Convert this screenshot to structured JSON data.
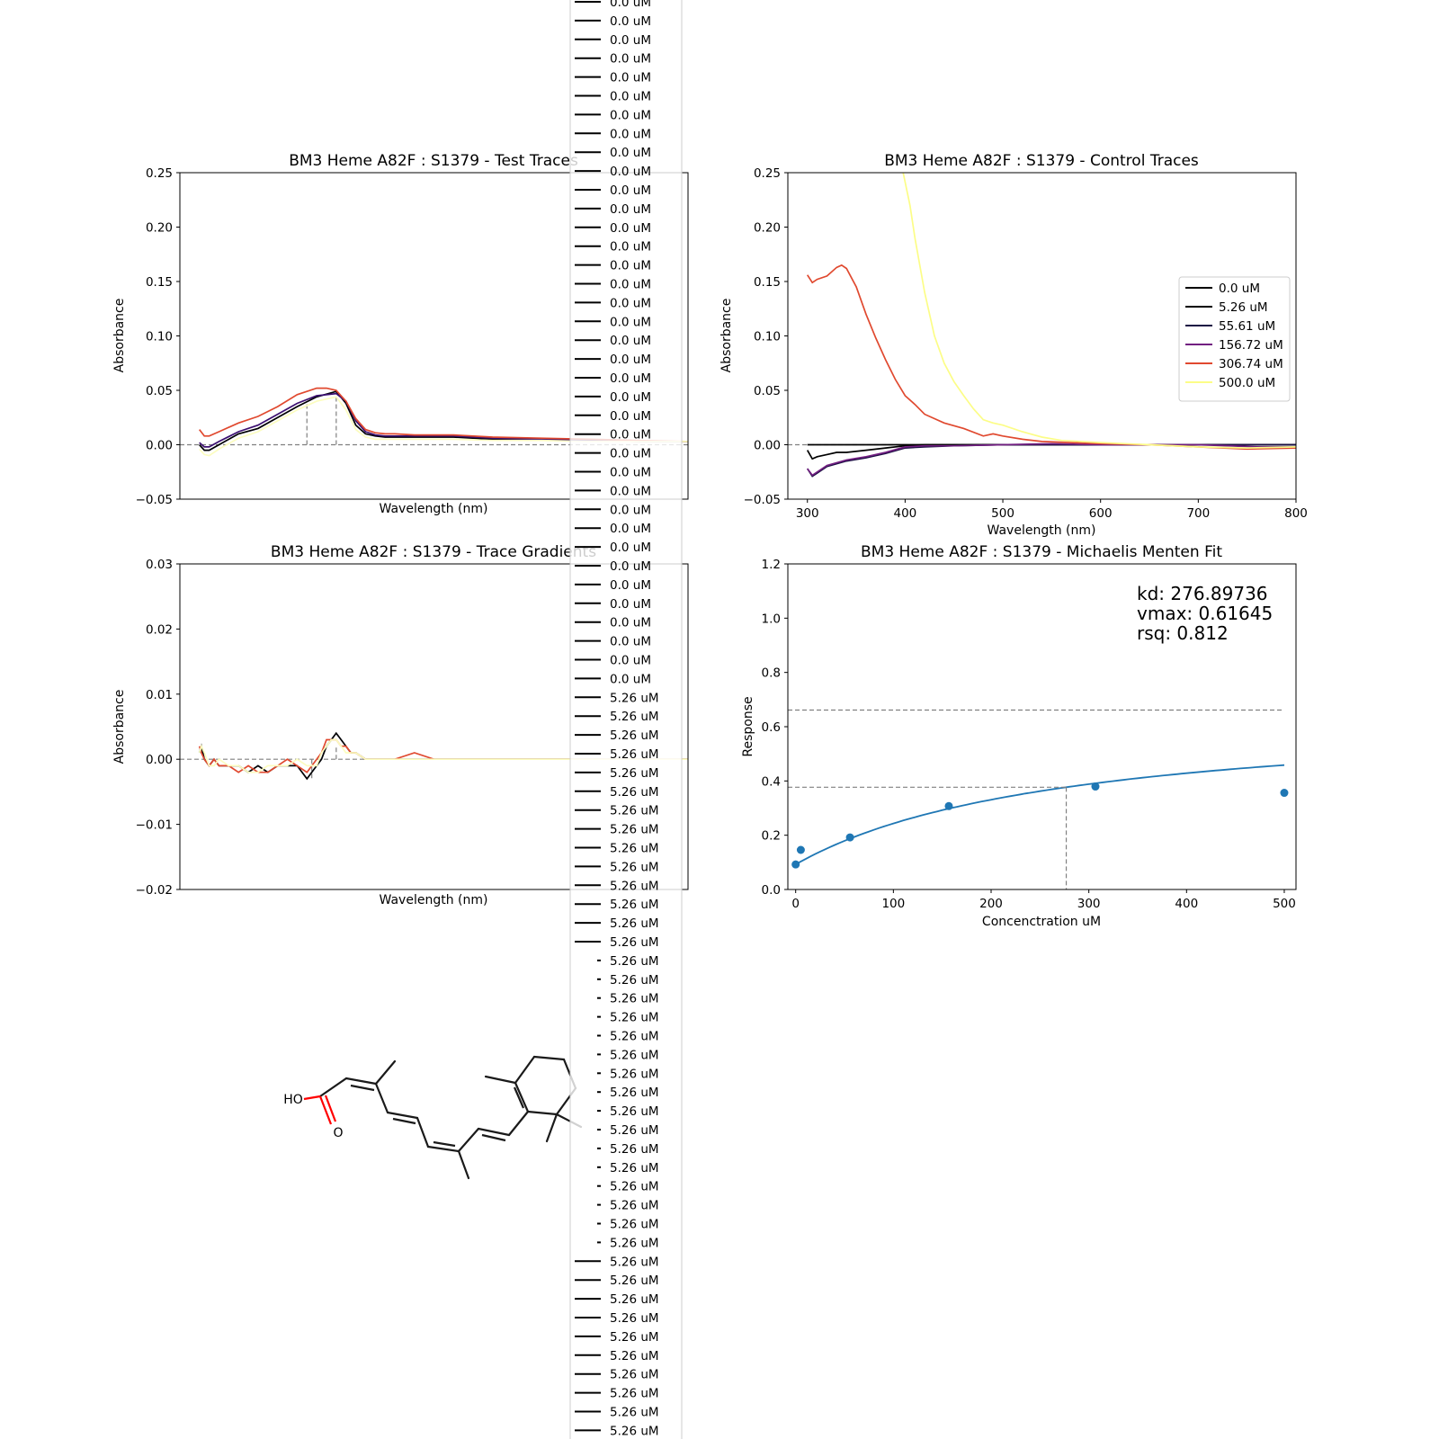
{
  "chart_data": [
    {
      "id": "test",
      "type": "line",
      "title": "BM3 Heme A82F : S1379 - Test Traces",
      "xlabel": "Wavelength (nm)",
      "ylabel": "Absorbance",
      "xlim": [
        280,
        800
      ],
      "ylim": [
        -0.05,
        0.25
      ],
      "yticks": [
        "0.25",
        "0.20",
        "0.15",
        "0.10",
        "0.05",
        "0.00",
        "−0.05"
      ],
      "series": [
        {
          "color": "#000004",
          "x": [
            300,
            305,
            310,
            320,
            340,
            360,
            380,
            400,
            420,
            440,
            450,
            460,
            470,
            480,
            490,
            500,
            520,
            540,
            560,
            600,
            650,
            700,
            750,
            800
          ],
          "y": [
            0.0,
            -0.005,
            -0.005,
            0.0,
            0.01,
            0.015,
            0.025,
            0.035,
            0.044,
            0.049,
            0.038,
            0.018,
            0.01,
            0.008,
            0.007,
            0.007,
            0.007,
            0.007,
            0.007,
            0.005,
            0.005,
            0.004,
            0.003,
            0.003
          ]
        },
        {
          "color": "#3b0f70",
          "x": [
            300,
            305,
            310,
            320,
            340,
            360,
            380,
            400,
            420,
            440,
            450,
            460,
            470,
            480,
            490,
            500,
            520,
            540,
            560,
            600,
            650,
            700,
            750,
            800
          ],
          "y": [
            0.002,
            -0.002,
            -0.002,
            0.003,
            0.012,
            0.018,
            0.028,
            0.038,
            0.045,
            0.047,
            0.04,
            0.022,
            0.012,
            0.009,
            0.008,
            0.008,
            0.008,
            0.008,
            0.008,
            0.006,
            0.005,
            0.004,
            0.003,
            0.003
          ]
        },
        {
          "color": "#e0492f",
          "x": [
            300,
            305,
            310,
            320,
            340,
            360,
            380,
            400,
            420,
            430,
            440,
            450,
            460,
            470,
            480,
            490,
            500,
            520,
            540,
            560,
            600,
            650,
            700,
            750,
            800
          ],
          "y": [
            0.014,
            0.008,
            0.008,
            0.012,
            0.02,
            0.026,
            0.035,
            0.046,
            0.052,
            0.052,
            0.05,
            0.04,
            0.024,
            0.014,
            0.011,
            0.01,
            0.01,
            0.009,
            0.009,
            0.009,
            0.007,
            0.006,
            0.005,
            0.004,
            0.003
          ]
        },
        {
          "color": "#fcfdbf",
          "x": [
            300,
            305,
            310,
            320,
            340,
            360,
            380,
            400,
            420,
            440,
            450,
            460,
            470,
            480,
            490,
            500,
            520,
            540,
            560,
            600,
            650,
            700,
            750,
            800
          ],
          "y": [
            -0.004,
            -0.009,
            -0.01,
            -0.004,
            0.006,
            0.012,
            0.022,
            0.032,
            0.04,
            0.044,
            0.032,
            0.014,
            0.007,
            0.005,
            0.005,
            0.005,
            0.005,
            0.005,
            0.005,
            0.004,
            0.004,
            0.003,
            0.003,
            0.003
          ]
        }
      ],
      "hlines": [
        0.0
      ],
      "vlines": [
        {
          "x": 410,
          "top": 0.04
        },
        {
          "x": 440,
          "top": 0.05
        }
      ]
    },
    {
      "id": "control",
      "type": "line",
      "title": "BM3 Heme A82F : S1379 - Control Traces",
      "xlabel": "Wavelength (nm)",
      "ylabel": "Absorbance",
      "xlim": [
        280,
        800
      ],
      "ylim": [
        -0.05,
        0.25
      ],
      "xticks": [
        "300",
        "400",
        "500",
        "600",
        "700",
        "800"
      ],
      "yticks": [
        "0.25",
        "0.20",
        "0.15",
        "0.10",
        "0.05",
        "0.00",
        "−0.05"
      ],
      "legend": "right",
      "series": [
        {
          "name": "0.0 uM",
          "color": "#000000",
          "x": [
            300,
            800
          ],
          "y": [
            0.0,
            0.0
          ]
        },
        {
          "name": "5.26 uM",
          "color": "#000000",
          "x": [
            300,
            305,
            310,
            320,
            330,
            340,
            360,
            380,
            400,
            420,
            450,
            500,
            600,
            700,
            800
          ],
          "y": [
            -0.005,
            -0.013,
            -0.011,
            -0.009,
            -0.007,
            -0.007,
            -0.005,
            -0.003,
            -0.001,
            0.0,
            0.0,
            0.0,
            0.0,
            0.0,
            0.0
          ]
        },
        {
          "name": "55.61 uM",
          "color": "#1c1044",
          "x": [
            300,
            305,
            310,
            320,
            340,
            360,
            380,
            400,
            420,
            450,
            500,
            550,
            600,
            700,
            800
          ],
          "y": [
            -0.022,
            -0.029,
            -0.026,
            -0.02,
            -0.015,
            -0.012,
            -0.008,
            -0.003,
            -0.002,
            -0.001,
            0.0,
            0.0,
            0.0,
            0.0,
            0.0
          ]
        },
        {
          "name": "156.72 uM",
          "color": "#721f81",
          "x": [
            300,
            305,
            310,
            320,
            340,
            360,
            380,
            400,
            420,
            450,
            500,
            550,
            600,
            700,
            760,
            800
          ],
          "y": [
            -0.022,
            -0.028,
            -0.025,
            -0.019,
            -0.014,
            -0.011,
            -0.007,
            -0.002,
            -0.001,
            -0.001,
            0.0,
            0.001,
            0.0,
            0.0,
            -0.002,
            -0.002
          ]
        },
        {
          "name": "306.74 uM",
          "color": "#e0492f",
          "x": [
            300,
            305,
            310,
            320,
            330,
            335,
            340,
            350,
            360,
            370,
            380,
            390,
            400,
            410,
            420,
            440,
            460,
            480,
            490,
            500,
            520,
            540,
            600,
            650,
            700,
            750,
            800
          ],
          "y": [
            0.156,
            0.149,
            0.152,
            0.155,
            0.163,
            0.165,
            0.162,
            0.145,
            0.12,
            0.098,
            0.078,
            0.06,
            0.045,
            0.037,
            0.028,
            0.02,
            0.015,
            0.008,
            0.01,
            0.008,
            0.005,
            0.003,
            0.001,
            0.0,
            -0.002,
            -0.004,
            -0.003
          ]
        },
        {
          "name": "500.0 uM",
          "color": "#fcfd87",
          "x": [
            398,
            405,
            410,
            420,
            430,
            440,
            450,
            460,
            470,
            480,
            490,
            500,
            520,
            540,
            560,
            600,
            650,
            700,
            750,
            800
          ],
          "y": [
            0.25,
            0.22,
            0.19,
            0.14,
            0.1,
            0.075,
            0.058,
            0.045,
            0.033,
            0.023,
            0.02,
            0.018,
            0.012,
            0.007,
            0.004,
            0.002,
            0.0,
            -0.002,
            -0.003,
            -0.002
          ]
        }
      ],
      "hlines": [
        0.0
      ]
    },
    {
      "id": "gradient",
      "type": "line",
      "title": "BM3 Heme A82F : S1379 - Trace Gradients",
      "xlabel": "Wavelength (nm)",
      "ylabel": "Absorbance",
      "xlim": [
        280,
        800
      ],
      "ylim": [
        -0.02,
        0.03
      ],
      "yticks": [
        "0.03",
        "0.02",
        "0.01",
        "0.00",
        "−0.01",
        "−0.02"
      ],
      "series": [
        {
          "color": "#000004",
          "x": [
            300,
            302,
            305,
            310,
            315,
            320,
            330,
            340,
            350,
            360,
            370,
            380,
            390,
            400,
            410,
            420,
            425,
            430,
            435,
            440,
            445,
            450,
            455,
            460,
            470,
            480,
            490,
            500,
            520,
            540,
            560,
            580,
            600,
            650,
            700,
            750,
            800
          ],
          "y": [
            0.001,
            0.002,
            0.0,
            -0.001,
            0.0,
            -0.001,
            -0.001,
            -0.001,
            -0.002,
            -0.001,
            -0.002,
            -0.001,
            -0.001,
            -0.001,
            -0.003,
            -0.001,
            0.0,
            0.002,
            0.003,
            0.004,
            0.003,
            0.002,
            0.001,
            0.001,
            0.0,
            0.0,
            0.0,
            0.0,
            0.0,
            0.0,
            0.0,
            0.0,
            0.0,
            0.0,
            0.0,
            0.0,
            0.0
          ]
        },
        {
          "color": "#e0492f",
          "x": [
            300,
            302,
            305,
            310,
            315,
            320,
            330,
            340,
            350,
            360,
            370,
            380,
            390,
            400,
            410,
            420,
            425,
            430,
            435,
            440,
            445,
            450,
            455,
            460,
            470,
            480,
            490,
            500,
            520,
            540,
            560,
            580,
            600,
            650,
            700,
            750,
            800
          ],
          "y": [
            0.002,
            0.001,
            0.0,
            -0.001,
            0.0,
            -0.001,
            -0.001,
            -0.002,
            -0.001,
            -0.002,
            -0.002,
            -0.001,
            0.0,
            -0.001,
            -0.002,
            0.0,
            0.001,
            0.003,
            0.003,
            0.003,
            0.002,
            0.002,
            0.001,
            0.001,
            0.0,
            0.0,
            0.0,
            0.0,
            0.001,
            0.0,
            0.0,
            0.0,
            0.0,
            0.0,
            0.0,
            0.0,
            0.0
          ]
        },
        {
          "color": "#fcfdbf",
          "x": [
            300,
            302,
            305,
            310,
            315,
            320,
            330,
            340,
            350,
            360,
            370,
            380,
            390,
            400,
            410,
            420,
            425,
            430,
            435,
            440,
            445,
            450,
            455,
            460,
            470,
            480,
            490,
            500,
            520,
            540,
            560,
            580,
            600,
            650,
            700,
            750,
            800
          ],
          "y": [
            0.001,
            0.002,
            0.001,
            -0.001,
            -0.001,
            0.0,
            -0.001,
            -0.001,
            -0.002,
            -0.002,
            -0.001,
            -0.001,
            -0.001,
            0.0,
            -0.001,
            -0.001,
            0.001,
            0.002,
            0.003,
            0.003,
            0.002,
            0.001,
            0.001,
            0.001,
            0.0,
            0.0,
            0.0,
            0.0,
            0.0,
            0.0,
            0.0,
            0.0,
            0.0,
            0.0,
            0.0,
            0.0,
            0.0
          ]
        }
      ],
      "hlines": [
        0.0
      ],
      "vlines": [
        {
          "x": 415,
          "top": -0.003
        },
        {
          "x": 440,
          "top": 0.002
        }
      ]
    },
    {
      "id": "mm",
      "type": "scatter",
      "title": "BM3 Heme A82F : S1379 - Michaelis Menten Fit",
      "xlabel": "Concenctration uM",
      "ylabel": "Response",
      "xlim": [
        -8,
        512
      ],
      "ylim": [
        -0.1,
        1.2
      ],
      "xticks": [
        "0",
        "100",
        "200",
        "300",
        "400",
        "500"
      ],
      "yticks": [
        "1.2",
        "1.0",
        "0.8",
        "0.6",
        "0.4",
        "0.2",
        "0.0"
      ],
      "points": {
        "color": "#1f77b4",
        "x": [
          0,
          5.26,
          55.61,
          156.72,
          306.74,
          500.0
        ],
        "y": [
          0.0,
          0.058,
          0.108,
          0.233,
          0.311,
          0.286
        ]
      },
      "fit": {
        "color": "#1f77b4",
        "kd": 276.89736,
        "vmax": 0.61645
      },
      "annotation": [
        "kd: 276.89736",
        "vmax: 0.61645",
        "rsq: 0.812"
      ]
    }
  ],
  "legend_overlay": {
    "items": [
      "0.0 uM",
      "0.0 uM",
      "0.0 uM",
      "0.0 uM",
      "0.0 uM",
      "0.0 uM",
      "0.0 uM",
      "0.0 uM",
      "0.0 uM",
      "0.0 uM",
      "0.0 uM",
      "0.0 uM",
      "0.0 uM",
      "0.0 uM",
      "0.0 uM",
      "0.0 uM",
      "0.0 uM",
      "0.0 uM",
      "0.0 uM",
      "0.0 uM",
      "0.0 uM",
      "0.0 uM",
      "0.0 uM",
      "0.0 uM",
      "0.0 uM",
      "0.0 uM",
      "0.0 uM",
      "0.0 uM",
      "0.0 uM",
      "0.0 uM",
      "0.0 uM",
      "0.0 uM",
      "0.0 uM",
      "0.0 uM",
      "0.0 uM",
      "0.0 uM",
      "0.0 uM",
      "5.26 uM",
      "5.26 uM",
      "5.26 uM",
      "5.26 uM",
      "5.26 uM",
      "5.26 uM",
      "5.26 uM",
      "5.26 uM",
      "5.26 uM",
      "5.26 uM",
      "5.26 uM",
      "5.26 uM",
      "5.26 uM",
      "5.26 uM",
      "5.26 uM",
      "5.26 uM",
      "5.26 uM",
      "5.26 uM",
      "5.26 uM",
      "5.26 uM",
      "5.26 uM",
      "5.26 uM",
      "5.26 uM",
      "5.26 uM",
      "5.26 uM",
      "5.26 uM",
      "5.26 uM",
      "5.26 uM",
      "5.26 uM",
      "5.26 uM",
      "5.26 uM",
      "5.26 uM",
      "5.26 uM",
      "5.26 uM",
      "5.26 uM",
      "5.26 uM",
      "5.26 uM",
      "5.26 uM",
      "5.26 uM",
      "5.26 uM"
    ],
    "line_color": "#000000"
  },
  "molecule": {
    "atom_labels": [
      "HO",
      "O"
    ],
    "hetero_color": "#ff0000",
    "bond_color": "#1a1a1a"
  }
}
